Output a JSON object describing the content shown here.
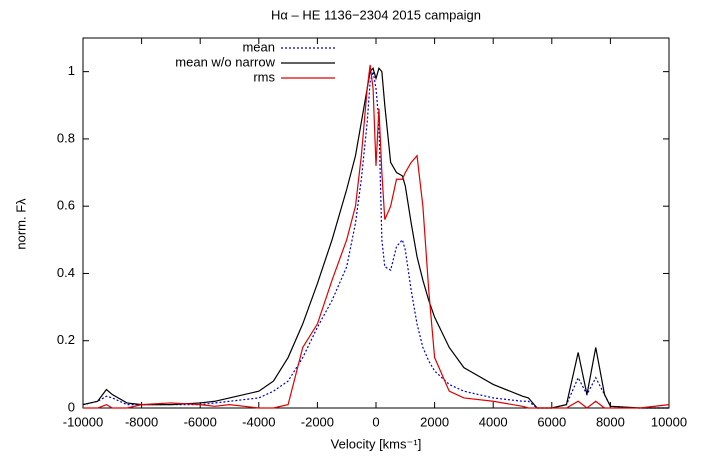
{
  "chart_data": {
    "type": "line",
    "title": "Hα – HE 1136−2304 2015 campaign",
    "xlabel": "Velocity [kms⁻¹]",
    "ylabel": "norm. Fλ",
    "x": [
      -10000,
      -9500,
      -9200,
      -9000,
      -8500,
      -8000,
      -7000,
      -6000,
      -5500,
      -5000,
      -4000,
      -3500,
      -3000,
      -2500,
      -2000,
      -1500,
      -1000,
      -700,
      -500,
      -300,
      -200,
      -100,
      0,
      100,
      200,
      300,
      500,
      700,
      900,
      1000,
      1200,
      1400,
      1600,
      1800,
      2000,
      2500,
      3000,
      4000,
      5000,
      5200,
      5500,
      6000,
      6500,
      6900,
      7200,
      7500,
      7800,
      8000,
      9000,
      10000
    ],
    "series": [
      {
        "name": "mean",
        "color": "#0000cc",
        "dash": true,
        "values": [
          0.01,
          0.02,
          0.035,
          0.03,
          0.01,
          0.01,
          0.01,
          0.01,
          0.015,
          0.02,
          0.03,
          0.05,
          0.08,
          0.15,
          0.24,
          0.32,
          0.42,
          0.55,
          0.68,
          0.85,
          0.97,
          1.0,
          0.95,
          0.85,
          0.5,
          0.42,
          0.41,
          0.48,
          0.5,
          0.47,
          0.35,
          0.25,
          0.18,
          0.14,
          0.11,
          0.07,
          0.05,
          0.03,
          0.02,
          0.02,
          0.0,
          0.0,
          0.01,
          0.09,
          0.04,
          0.09,
          0.04,
          0.005,
          0.0,
          0.0
        ]
      },
      {
        "name": "mean w/o narrow",
        "color": "#000000",
        "dash": false,
        "values": [
          0.01,
          0.02,
          0.055,
          0.04,
          0.015,
          0.01,
          0.01,
          0.015,
          0.02,
          0.03,
          0.05,
          0.08,
          0.15,
          0.25,
          0.37,
          0.5,
          0.65,
          0.75,
          0.85,
          0.95,
          1.0,
          1.01,
          0.98,
          1.01,
          1.0,
          0.9,
          0.73,
          0.7,
          0.69,
          0.66,
          0.55,
          0.45,
          0.38,
          0.32,
          0.27,
          0.18,
          0.12,
          0.07,
          0.035,
          0.03,
          0.0,
          0.0,
          0.01,
          0.165,
          0.04,
          0.18,
          0.04,
          0.005,
          0.0,
          0.0
        ]
      },
      {
        "name": "rms",
        "color": "#e00000",
        "dash": false,
        "values": [
          0.0,
          0.0,
          0.01,
          0.0,
          0.0,
          0.01,
          0.015,
          0.01,
          0.005,
          0.01,
          0.0,
          0.0,
          0.01,
          0.18,
          0.25,
          0.38,
          0.5,
          0.6,
          0.75,
          0.95,
          1.02,
          0.95,
          0.72,
          0.89,
          0.7,
          0.56,
          0.6,
          0.68,
          0.68,
          0.7,
          0.73,
          0.75,
          0.6,
          0.35,
          0.15,
          0.05,
          0.03,
          0.02,
          0.005,
          0.0,
          0.0,
          0.0,
          0.0,
          0.02,
          0.0,
          0.02,
          0.0,
          0.0,
          0.0,
          0.01
        ]
      }
    ],
    "xlim": [
      -10000,
      10000
    ],
    "xticks": [
      -10000,
      -8000,
      -6000,
      -4000,
      -2000,
      0,
      2000,
      4000,
      6000,
      8000,
      10000
    ],
    "ylim": [
      0,
      1.1
    ],
    "yticks": [
      0,
      0.2,
      0.4,
      0.6,
      0.8,
      1
    ],
    "legend": "top-left"
  }
}
